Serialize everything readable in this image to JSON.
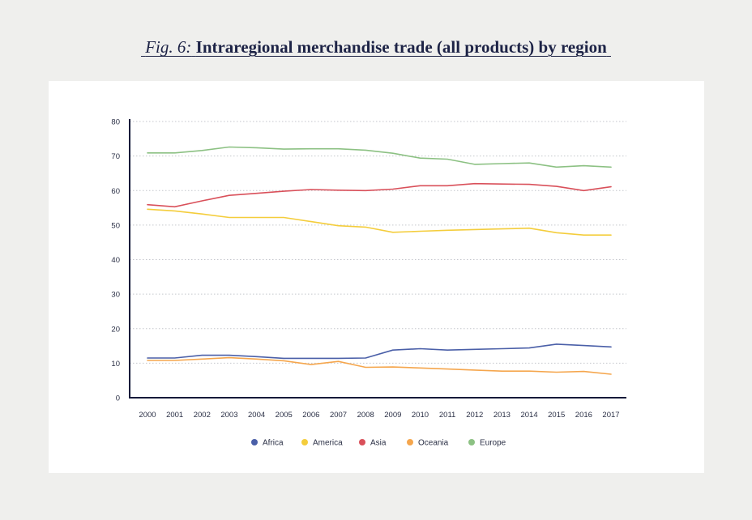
{
  "title": {
    "prefix": "Fig. 6:",
    "main": "Intraregional merchandise trade (all products) by region"
  },
  "chart_data": {
    "type": "line",
    "title": "Fig. 6: Intraregional merchandise trade (all products) by region",
    "xlabel": "",
    "ylabel": "",
    "x": [
      "2000",
      "2001",
      "2002",
      "2003",
      "2004",
      "2005",
      "2006",
      "2007",
      "2008",
      "2009",
      "2010",
      "2011",
      "2012",
      "2013",
      "2014",
      "2015",
      "2016",
      "2017"
    ],
    "ylim": [
      0,
      80
    ],
    "yticks": [
      0,
      10,
      20,
      30,
      40,
      50,
      60,
      70,
      80
    ],
    "grid": "horizontal-dotted",
    "legend": "bottom-center",
    "series": [
      {
        "name": "Africa",
        "color": "#4a5fa8",
        "values": [
          11.5,
          11.5,
          12.3,
          12.3,
          11.9,
          11.4,
          11.4,
          11.4,
          11.5,
          13.8,
          14.2,
          13.8,
          14.0,
          14.2,
          14.4,
          15.5,
          15.1,
          14.7
        ]
      },
      {
        "name": "America",
        "color": "#f4cd3c",
        "values": [
          54.6,
          54.1,
          53.2,
          52.2,
          52.2,
          52.2,
          51.0,
          49.8,
          49.4,
          47.9,
          48.2,
          48.5,
          48.7,
          48.9,
          49.1,
          47.8,
          47.1,
          47.1
        ]
      },
      {
        "name": "Asia",
        "color": "#d9505a",
        "values": [
          55.9,
          55.3,
          57.0,
          58.6,
          59.2,
          59.8,
          60.3,
          60.1,
          60.0,
          60.4,
          61.4,
          61.4,
          62.0,
          61.9,
          61.8,
          61.2,
          60.0,
          61.1
        ]
      },
      {
        "name": "Oceania",
        "color": "#f5a64d",
        "values": [
          10.8,
          10.8,
          11.2,
          11.6,
          11.2,
          10.7,
          9.6,
          10.5,
          8.8,
          8.9,
          8.6,
          8.3,
          8.0,
          7.7,
          7.7,
          7.4,
          7.6,
          6.8
        ]
      },
      {
        "name": "Europe",
        "color": "#8cc183",
        "values": [
          70.9,
          70.9,
          71.6,
          72.6,
          72.4,
          72.0,
          72.1,
          72.1,
          71.7,
          70.8,
          69.4,
          69.1,
          67.6,
          67.8,
          68.0,
          66.8,
          67.2,
          66.8
        ]
      }
    ]
  }
}
